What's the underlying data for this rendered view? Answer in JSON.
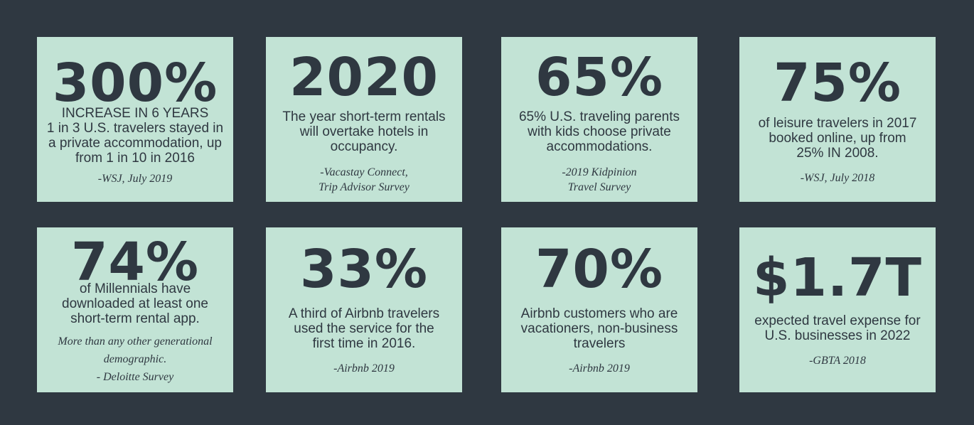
{
  "background_color": "#2f3841",
  "card_color": "#c2e3d5",
  "text_color": "#2f3841",
  "cards": [
    {
      "stat": "300%",
      "headline": "INCREASE IN 6 YEARS",
      "body": [
        "1 in 3 U.S. travelers stayed in",
        "a private accommodation, up",
        "from 1 in 10 in 2016"
      ],
      "source": [
        "-WSJ, July 2019"
      ]
    },
    {
      "stat": "2020",
      "body": [
        "The year short-term rentals",
        "will overtake hotels in",
        "occupancy."
      ],
      "source": [
        "-Vacastay Connect,",
        "Trip Advisor Survey"
      ]
    },
    {
      "stat": "65%",
      "body": [
        "65% U.S. traveling parents",
        "with kids choose private",
        "accommodations."
      ],
      "source": [
        "-2019 Kidpinion",
        "Travel Survey"
      ]
    },
    {
      "stat": "75%",
      "body": [
        "of leisure travelers in 2017",
        "booked online, up from",
        "25% IN 2008."
      ],
      "source": [
        "-WSJ, July 2018"
      ]
    },
    {
      "stat": "74%",
      "body": [
        "of Millennials have",
        "downloaded at least one",
        "short-term rental app."
      ],
      "note": [
        "More than any other generational",
        "demographic."
      ],
      "source": [
        "- Deloitte Survey"
      ]
    },
    {
      "stat": "33%",
      "body": [
        "A third of Airbnb travelers",
        "used the service for the",
        "first time in 2016."
      ],
      "source": [
        "-Airbnb 2019"
      ]
    },
    {
      "stat": "70%",
      "body": [
        "Airbnb customers who are",
        "vacationers, non-business",
        "travelers"
      ],
      "source": [
        "-Airbnb 2019"
      ]
    },
    {
      "stat": "$1.7T",
      "body": [
        "expected travel expense for",
        "U.S. businesses in 2022"
      ],
      "source": [
        "-GBTA 2018"
      ]
    }
  ]
}
